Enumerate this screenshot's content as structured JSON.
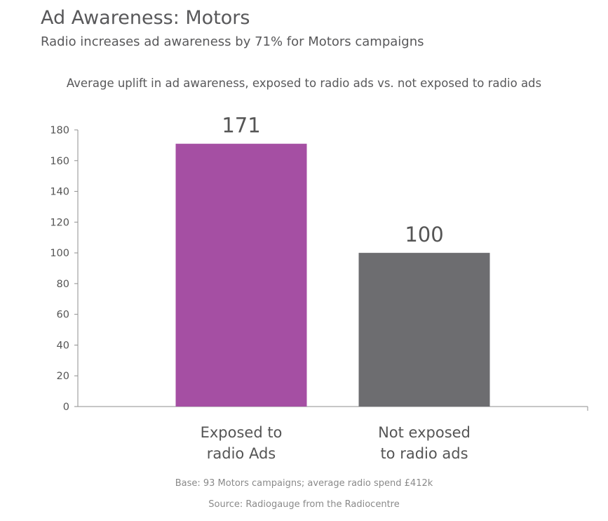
{
  "header": {
    "title": "Ad Awareness: Motors",
    "subtitle": "Radio increases ad awareness by 71% for Motors campaigns"
  },
  "footer": {
    "base": "Base: 93 Motors campaigns; average radio spend £412k",
    "source": "Source: Radiogauge from the Radiocentre"
  },
  "chart_data": {
    "type": "bar",
    "title": "Average uplift in ad awareness, exposed to radio ads vs. not exposed to radio ads",
    "xlabel": "",
    "ylabel": "",
    "categories": [
      [
        "Exposed to",
        "radio Ads"
      ],
      [
        "Not exposed",
        "to radio ads"
      ]
    ],
    "values": [
      171,
      100
    ],
    "data_labels": [
      "171",
      "100"
    ],
    "colors": [
      "#a54fa3",
      "#6d6d70"
    ],
    "ylim": [
      0,
      180
    ],
    "yticks": [
      0,
      20,
      40,
      60,
      80,
      100,
      120,
      140,
      160,
      180
    ],
    "grid": false,
    "legend": "none"
  }
}
